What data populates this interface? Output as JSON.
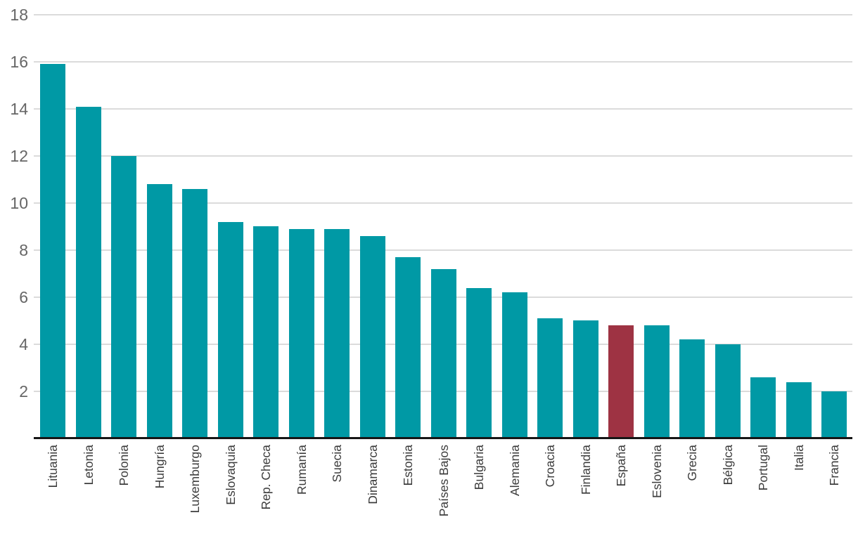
{
  "chart_data": {
    "type": "bar",
    "title": "",
    "categories": [
      "Lituania",
      "Letonia",
      "Polonia",
      "Hungría",
      "Luxemburgo",
      "Eslovaquia",
      "Rep. Checa",
      "Rumanía",
      "Suecia",
      "Dinamarca",
      "Estonia",
      "Países Bajos",
      "Bulgaria",
      "Alemania",
      "Croacia",
      "Finlandia",
      "España",
      "Eslovenia",
      "Grecia",
      "Bélgica",
      "Portugal",
      "Italia",
      "Francia"
    ],
    "values": [
      15.9,
      14.1,
      12.0,
      10.8,
      10.6,
      9.2,
      9.0,
      8.9,
      8.9,
      8.6,
      7.7,
      7.2,
      6.4,
      6.2,
      5.1,
      5.0,
      4.8,
      4.8,
      4.2,
      4.0,
      2.6,
      2.4,
      2.0
    ],
    "highlight_category": "España",
    "xlabel": "",
    "ylabel": "",
    "ylim": [
      0,
      18
    ],
    "yticks": [
      2,
      4,
      6,
      8,
      10,
      12,
      14,
      16,
      18
    ],
    "grid": "horizontal",
    "legend": "none",
    "x_label_rotation": "vertical-bottom-to-top",
    "colors": {
      "bar": "#0099A5",
      "highlight_bar": "#9E3343",
      "gridline": "#DBDBDB",
      "axis_line": "#161616",
      "y_tick_label": "#666666",
      "x_tick_label": "#3C3C3C",
      "background": "#FFFFFF"
    }
  }
}
